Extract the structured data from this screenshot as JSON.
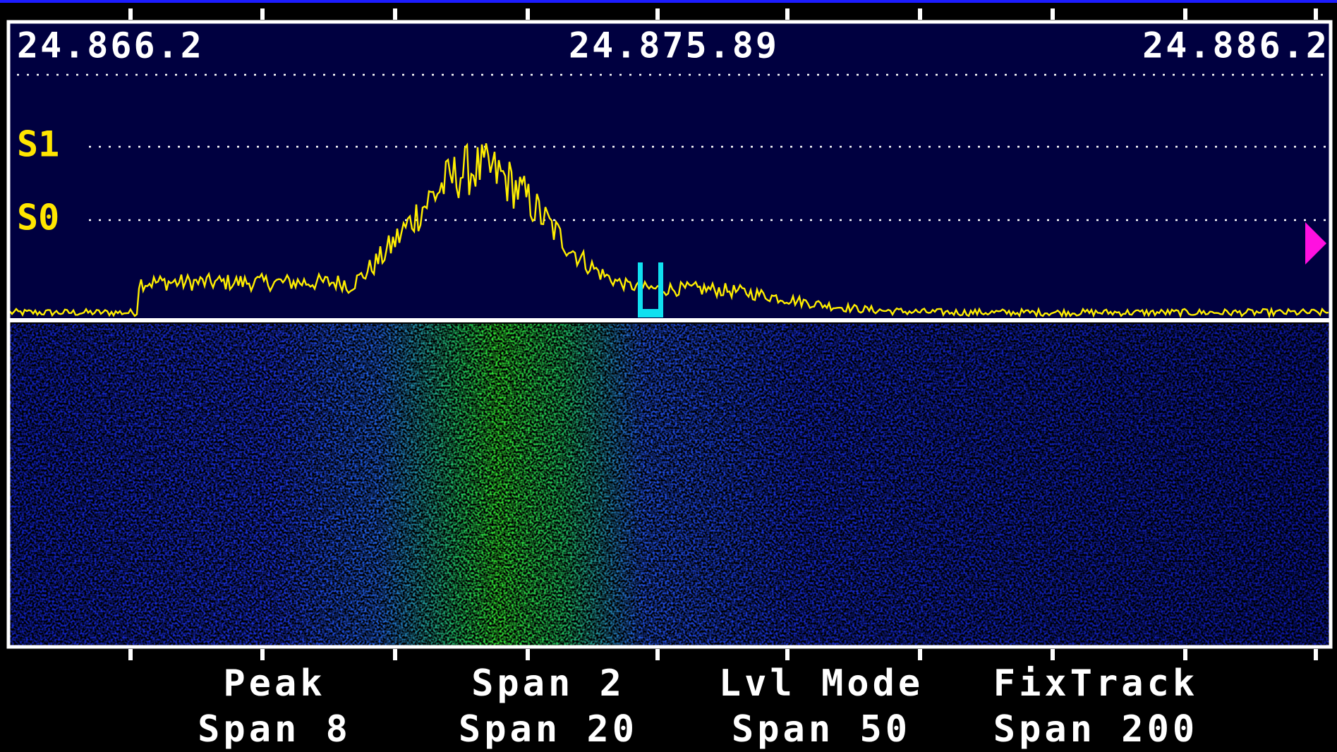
{
  "frequency_scale": {
    "left": "24.866.2",
    "center": "24.875.89",
    "right": "24.886.2"
  },
  "signal_levels": [
    "S1",
    "S0"
  ],
  "soft_keys": [
    {
      "top": "Peak",
      "bottom": "Span 8"
    },
    {
      "top": "Span 2",
      "bottom": "Span 20"
    },
    {
      "top": "Lvl Mode",
      "bottom": "Span 50"
    },
    {
      "top": "FixTrack",
      "bottom": "Span 200"
    }
  ]
}
